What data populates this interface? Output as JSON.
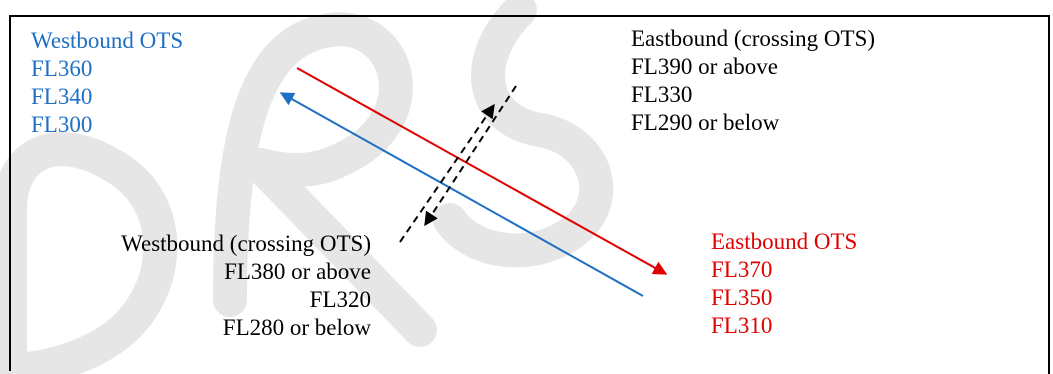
{
  "colors": {
    "westbound": "#1f6fc4",
    "eastbound": "#e00000",
    "crossing": "#000000",
    "watermark": "#e8e8e8"
  },
  "westbound_ots": {
    "title": "Westbound OTS",
    "levels": [
      "FL360",
      "FL340",
      "FL300"
    ]
  },
  "eastbound_crossing": {
    "title": "Eastbound (crossing OTS)",
    "levels": [
      "FL390 or above",
      "FL330",
      "FL290 or below"
    ]
  },
  "westbound_crossing": {
    "title": "Westbound (crossing OTS)",
    "levels": [
      "FL380 or above",
      "FL320",
      "FL280 or below"
    ]
  },
  "eastbound_ots": {
    "title": "Eastbound OTS",
    "levels": [
      "FL370",
      "FL350",
      "FL310"
    ]
  }
}
